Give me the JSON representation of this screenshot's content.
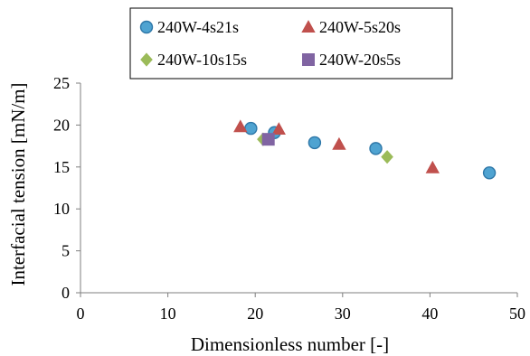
{
  "chart_data": {
    "type": "scatter",
    "title": "",
    "xlabel": "Dimensionless number [-]",
    "ylabel": "Interfacial tension [mN/m]",
    "xlim": [
      0,
      50
    ],
    "ylim": [
      0,
      25
    ],
    "xticks": [
      0,
      10,
      20,
      30,
      40,
      50
    ],
    "yticks": [
      0,
      5,
      10,
      15,
      20,
      25
    ],
    "grid": false,
    "legend_position": "top",
    "series": [
      {
        "name": "240W-4s21s",
        "marker": "circle",
        "color": "#4fa3d1",
        "stroke": "#2e77a8",
        "points": [
          [
            19.5,
            19.6
          ],
          [
            22.2,
            19.1
          ],
          [
            26.8,
            17.9
          ],
          [
            33.8,
            17.2
          ],
          [
            46.8,
            14.3
          ]
        ]
      },
      {
        "name": "240W-5s20s",
        "marker": "triangle",
        "color": "#c0504d",
        "stroke": "#c0504d",
        "points": [
          [
            18.3,
            19.8
          ],
          [
            22.7,
            19.5
          ],
          [
            29.6,
            17.7
          ],
          [
            40.3,
            14.9
          ]
        ]
      },
      {
        "name": "240W-10s15s",
        "marker": "diamond",
        "color": "#9bbb59",
        "stroke": "#9bbb59",
        "points": [
          [
            20.9,
            18.3
          ],
          [
            35.1,
            16.2
          ]
        ]
      },
      {
        "name": "240W-20s5s",
        "marker": "square",
        "color": "#8064a2",
        "stroke": "#8064a2",
        "points": [
          [
            21.5,
            18.3
          ]
        ]
      }
    ]
  }
}
